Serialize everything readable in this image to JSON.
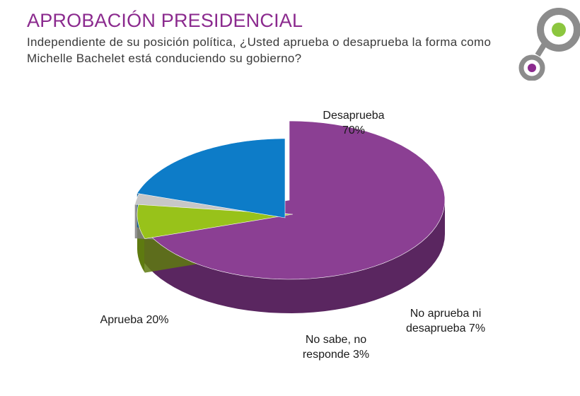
{
  "header": {
    "title": "APROBACIÓN PRESIDENCIAL",
    "subtitle": "Independiente de su posición política, ¿Usted aprueba o desaprueba la forma como Michelle Bachelet está conduciendo su gobierno?"
  },
  "chart_data": {
    "type": "pie",
    "style": "3d-exploded",
    "title": "APROBACIÓN PRESIDENCIAL",
    "unit": "%",
    "slices": [
      {
        "label": "Desaprueba",
        "value": 70,
        "display": [
          "Desaprueba",
          "70%"
        ],
        "color": "#8b3f93",
        "side": "#5a2660"
      },
      {
        "label": "No aprueba ni desaprueba",
        "value": 7,
        "display": [
          "No aprueba ni",
          "desaprueba 7%"
        ],
        "color": "#98c21a",
        "side": "#5e7a10"
      },
      {
        "label": "No sabe, no responde",
        "value": 3,
        "display": [
          "No sabe, no",
          "responde 3%"
        ],
        "color": "#c7c7c7",
        "side": "#7f7f7f"
      },
      {
        "label": "Aprueba",
        "value": 20,
        "display": [
          "Aprueba 20%"
        ],
        "color": "#0d7cc8",
        "side": "#0a5b96"
      }
    ]
  },
  "colors": {
    "title": "#8b2a8e",
    "logo_ring": "#808080",
    "logo_green": "#8cc63f",
    "logo_purple": "#8b2a8e"
  }
}
